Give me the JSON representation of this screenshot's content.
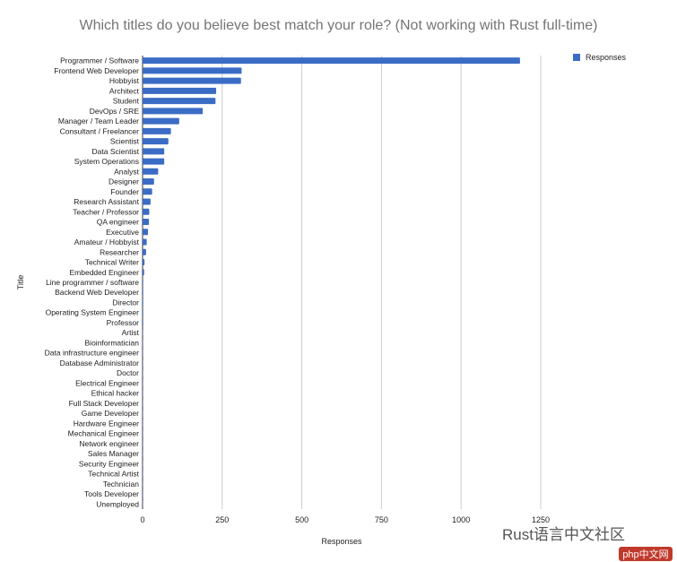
{
  "chart_data": {
    "type": "bar",
    "orientation": "horizontal",
    "title": "Which titles do you believe best match your role? (Not working with Rust full-time)",
    "xlabel": "Responses",
    "ylabel": "Title",
    "xlim": [
      0,
      1250
    ],
    "xticks": [
      0,
      250,
      500,
      750,
      1000,
      1250
    ],
    "grid": true,
    "legend_position": "top-right",
    "bar_color": "#3b6cc5",
    "categories": [
      "Programmer / Software",
      "Frontend Web Developer",
      "Hobbyist",
      "Architect",
      "Student",
      "DevOps / SRE",
      "Manager / Team Leader",
      "Consultant / Freelancer",
      "Scientist",
      "Data Scientist",
      "System Operations",
      "Analyst",
      "Designer",
      "Founder",
      "Research Assistant",
      "Teacher / Professor",
      "QA engineer",
      "Executive",
      "Amateur / Hobbyist",
      "Researcher",
      "Technical Writer",
      "Embedded Engineer",
      "Line programmer / software",
      "Backend Web Developer",
      "Director",
      "Operating System Engineer",
      "Professor",
      "Artist",
      "Bioinformatician",
      "Data infrastructure engineer",
      "Database Administrator",
      "Doctor",
      "Electrical Engineer",
      "Ethical hacker",
      "Full Stack Developer",
      "Game Developer",
      "Hardware Engineer",
      "Mechanical Engineer",
      "Network engineer",
      "Sales Manager",
      "Security Engineer",
      "Technical Artist",
      "Technician",
      "Tools Developer",
      "Unemployed"
    ],
    "series": [
      {
        "name": "Responses",
        "values": [
          1185,
          311,
          309,
          231,
          229,
          189,
          115,
          89,
          81,
          68,
          68,
          49,
          36,
          30,
          25,
          21,
          20,
          17,
          13,
          11,
          6,
          5,
          2,
          2,
          2,
          2,
          2,
          1,
          1,
          1,
          1,
          1,
          1,
          1,
          1,
          1,
          1,
          1,
          1,
          1,
          1,
          1,
          1,
          1,
          1
        ]
      }
    ]
  },
  "watermark": "Rust语言中文社区",
  "watermark_logo": "php中文网"
}
